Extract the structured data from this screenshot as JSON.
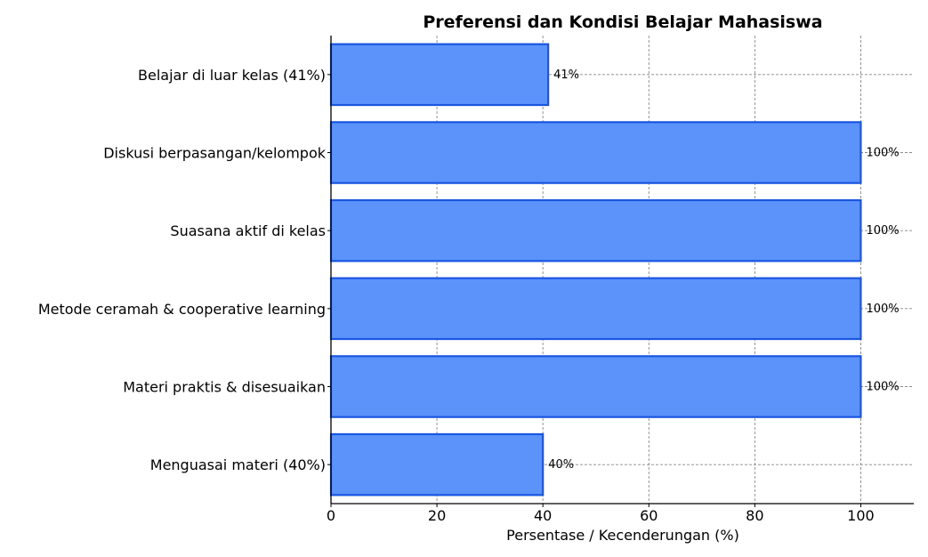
{
  "chart_data": {
    "type": "bar",
    "orientation": "horizontal",
    "title": "Preferensi dan Kondisi Belajar Mahasiswa",
    "xlabel": "Persentase / Kecenderungan (%)",
    "ylabel": "",
    "xlim": [
      0,
      110
    ],
    "xticks": [
      0,
      20,
      40,
      60,
      80,
      100
    ],
    "grid": true,
    "categories": [
      "Belajar di luar kelas (41%)",
      "Diskusi berpasangan/kelompok",
      "Suasana aktif di kelas",
      "Metode ceramah & cooperative learning",
      "Materi praktis & disesuaikan",
      "Menguasai materi (40%)"
    ],
    "values": [
      41,
      100,
      100,
      100,
      100,
      40
    ],
    "data_labels": [
      "41%",
      "100%",
      "100%",
      "100%",
      "100%",
      "40%"
    ],
    "colors": {
      "bar_fill": "#5b93fb",
      "bar_edge": "#1a56e0",
      "grid": "#888888"
    }
  }
}
